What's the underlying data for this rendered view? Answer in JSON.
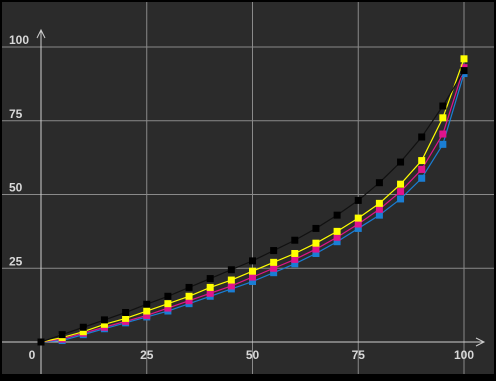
{
  "chart_data": {
    "type": "line",
    "title": "",
    "xlabel": "",
    "ylabel": "",
    "xlim": [
      0,
      100
    ],
    "ylim": [
      0,
      100
    ],
    "grid": true,
    "legend": "none",
    "x_ticks": [
      "0",
      "25",
      "50",
      "75",
      "100"
    ],
    "y_ticks": [
      "25",
      "50",
      "75",
      "100"
    ],
    "x": [
      0,
      5,
      10,
      15,
      20,
      25,
      30,
      35,
      40,
      45,
      50,
      55,
      60,
      65,
      70,
      75,
      80,
      85,
      90,
      95,
      100
    ],
    "series": [
      {
        "color": "#000000",
        "values": [
          0,
          2.5,
          5,
          7.5,
          10,
          12.8,
          15.5,
          18.5,
          21.5,
          24.5,
          27.5,
          31,
          34.5,
          38.5,
          43,
          48,
          54,
          61,
          69.5,
          80,
          92
        ]
      },
      {
        "color": "#ffff00",
        "values": [
          0,
          1.5,
          3.5,
          6,
          8,
          10.5,
          13,
          15.5,
          18.5,
          21,
          24,
          27,
          30,
          33.5,
          37.5,
          42,
          47,
          53.5,
          61.5,
          76,
          96
        ]
      },
      {
        "color": "#e0148c",
        "values": [
          0,
          1,
          3,
          5,
          7,
          9,
          11.5,
          14,
          16.5,
          19,
          22,
          25,
          28,
          31.5,
          35.5,
          40,
          45,
          51,
          58.5,
          70.5,
          93
        ]
      },
      {
        "color": "#1a7ed4",
        "values": [
          0,
          0.5,
          2.5,
          4.5,
          6.5,
          8.5,
          10.5,
          13,
          15.5,
          18,
          20.5,
          23.5,
          26.5,
          30,
          34,
          38.5,
          43,
          48.5,
          55.5,
          67,
          91
        ]
      }
    ],
    "colors": {
      "background": "#2b2b2b",
      "grid": "#8a8a8a",
      "axis": "#cfcfcf",
      "text": "#d8d8d8"
    }
  }
}
